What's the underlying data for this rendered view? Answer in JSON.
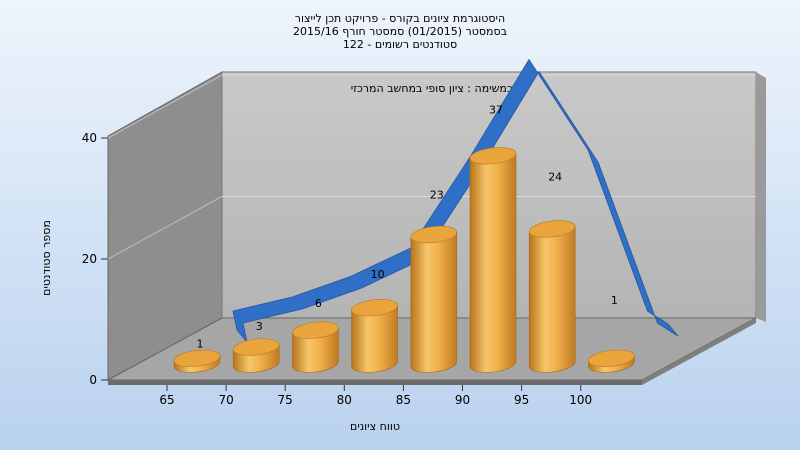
{
  "chart_data": {
    "type": "bar",
    "title_lines": [
      "היסטוגרמת ציונים בקורס - פרויקט תכן לייצור",
      "בסמסטר  (01/2015)  סמסטר חורף 2015/16",
      "סטודנטים רשומים - 122"
    ],
    "subtitle": "במשימה : ציון סופי במחשב המרכזי",
    "xlabel": "טווח ציונים",
    "ylabel": "מספר סטודנטים",
    "x_ticks": [
      "65",
      "70",
      "75",
      "80",
      "85",
      "90",
      "95",
      "100"
    ],
    "y_ticks": [
      0,
      20,
      40
    ],
    "ylim": [
      0,
      40
    ],
    "grid": true,
    "bar_color": "#f0b04a",
    "curve_color": "#2f6fc7",
    "series": [
      {
        "values": [
          1,
          3,
          6,
          10,
          23,
          37,
          24,
          1
        ],
        "labels": [
          "1",
          "3",
          "6",
          "10",
          "23",
          "37",
          "24",
          "1"
        ]
      }
    ]
  }
}
